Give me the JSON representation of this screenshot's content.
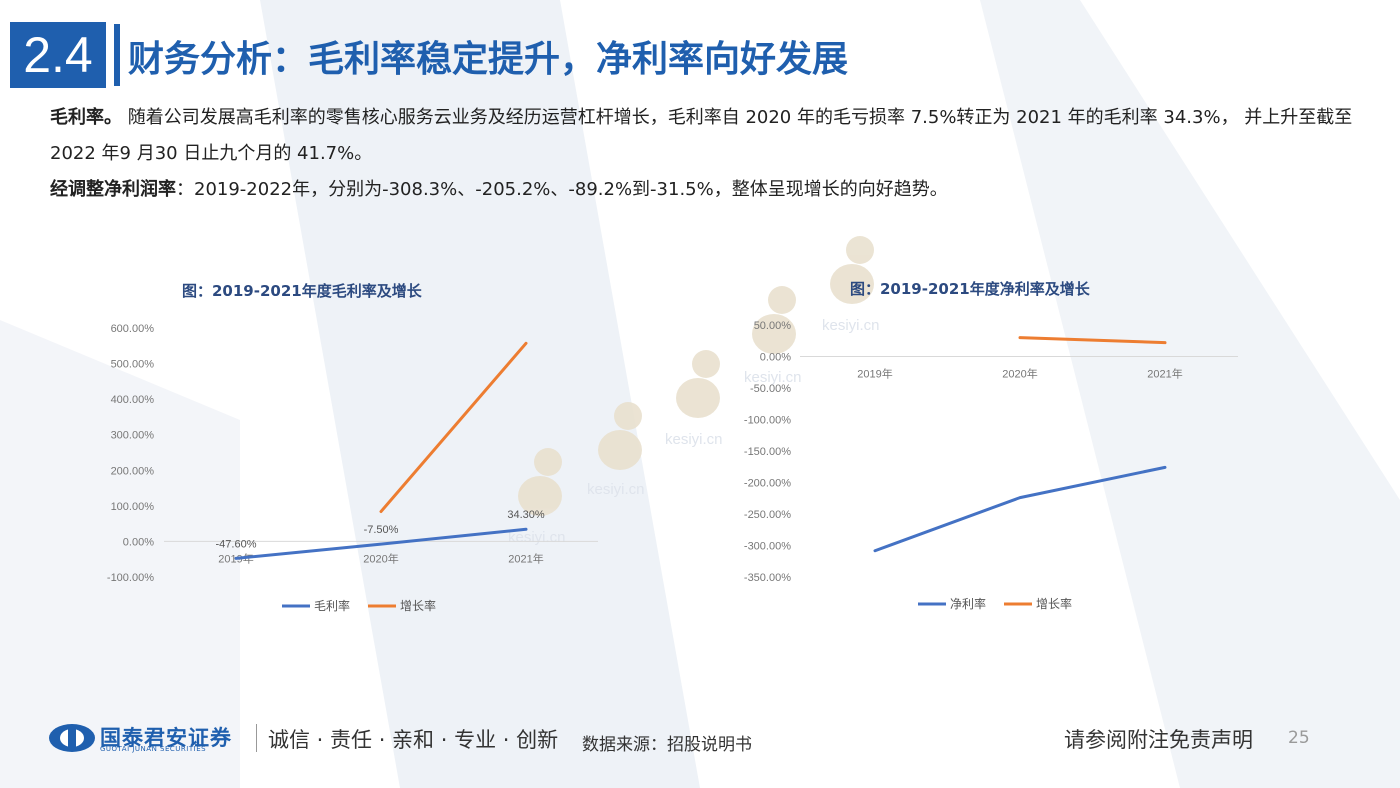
{
  "header": {
    "section_number": "2.4",
    "title": "财务分析：毛利率稳定提升，净利率向好发展"
  },
  "paragraphs": [
    {
      "label": "毛利率。",
      "text": " 随着公司发展高毛利率的零售核心服务云业务及经历运营杠杆增长，毛利率自 2020 年的毛亏损率 7.5%转正为 2021 年的毛利率 34.3%， 并上升至截至2022 年9 月30 日止九个月的 41.7%。"
    },
    {
      "label": "经调整净利润率",
      "text": "：2019-2022年，分别为-308.3%、-205.2%、-89.2%到-31.5%，整体呈现增长的向好趋势。"
    }
  ],
  "chart_data": [
    {
      "type": "line",
      "title": "图：2019-2021年度毛利率及增长",
      "categories": [
        "2019年",
        "2020年",
        "2021年"
      ],
      "ylim": [
        -100,
        600
      ],
      "yticks": [
        "600.00%",
        "500.00%",
        "400.00%",
        "300.00%",
        "200.00%",
        "100.00%",
        "0.00%",
        "-100.00%"
      ],
      "series": [
        {
          "name": "毛利率",
          "color": "#4472c4",
          "values": [
            -47.6,
            -7.5,
            34.3
          ],
          "labels": [
            "-47.60%",
            "-7.50%",
            "34.30%"
          ]
        },
        {
          "name": "增长率",
          "color": "#ed7d31",
          "values": [
            null,
            84,
            557
          ]
        }
      ],
      "legend": "bottom"
    },
    {
      "type": "line",
      "title": "图：2019-2021年度净利率及增长",
      "categories": [
        "2019年",
        "2020年",
        "2021年"
      ],
      "ylim": [
        -350,
        50
      ],
      "yticks": [
        "50.00%",
        "0.00%",
        "-50.00%",
        "-100.00%",
        "-150.00%",
        "-200.00%",
        "-250.00%",
        "-300.00%",
        "-350.00%"
      ],
      "series": [
        {
          "name": "净利率",
          "color": "#4472c4",
          "values": [
            -308.3,
            -224,
            -176
          ]
        },
        {
          "name": "增长率",
          "color": "#ed7d31",
          "values": [
            null,
            30,
            22
          ]
        }
      ],
      "legend": "bottom"
    }
  ],
  "watermark": "kesiyi.cn",
  "footer": {
    "company_cn": "国泰君安证券",
    "company_en": "GUOTAI JUNAN SECURITIES",
    "slogan": "诚信 · 责任 · 亲和 · 专业 · 创新",
    "source": "数据来源：招股说明书",
    "disclaimer": "请参阅附注免责声明",
    "page_number": "25"
  }
}
